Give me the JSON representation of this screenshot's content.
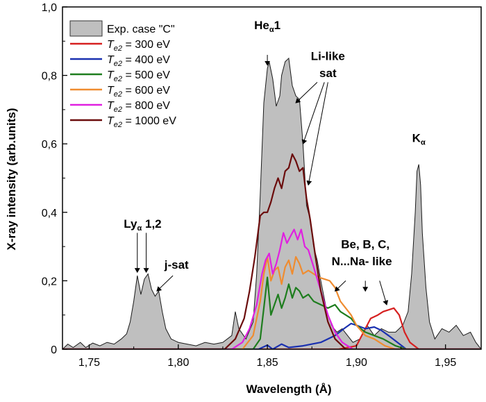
{
  "chart_data": {
    "type": "area",
    "xlabel": "Wavelength (Å)",
    "ylabel": "X-ray intensity (arb.units)",
    "xlim": [
      1.735,
      1.97
    ],
    "ylim": [
      0,
      1.0
    ],
    "x_ticks": [
      1.75,
      1.8,
      1.85,
      1.9,
      1.95
    ],
    "x_tick_labels": [
      "1,75",
      "1,80",
      "1,85",
      "1,90",
      "1,95"
    ],
    "y_ticks": [
      0,
      0.2,
      0.4,
      0.6,
      0.8,
      1.0
    ],
    "y_tick_labels": [
      "0",
      "0,2",
      "0,4",
      "0,6",
      "0,8",
      "1,0"
    ],
    "grid": false,
    "legend_position": "top-left",
    "series": [
      {
        "name": "Exp. case \"C\"",
        "kind": "filled",
        "color": "#bfbfbf",
        "points": [
          [
            1.735,
            0.0
          ],
          [
            1.738,
            0.015
          ],
          [
            1.741,
            0.005
          ],
          [
            1.745,
            0.02
          ],
          [
            1.748,
            0.005
          ],
          [
            1.752,
            0.018
          ],
          [
            1.756,
            0.01
          ],
          [
            1.76,
            0.02
          ],
          [
            1.764,
            0.015
          ],
          [
            1.768,
            0.03
          ],
          [
            1.771,
            0.045
          ],
          [
            1.773,
            0.08
          ],
          [
            1.775,
            0.14
          ],
          [
            1.777,
            0.215
          ],
          [
            1.779,
            0.16
          ],
          [
            1.781,
            0.205
          ],
          [
            1.783,
            0.22
          ],
          [
            1.785,
            0.175
          ],
          [
            1.787,
            0.155
          ],
          [
            1.789,
            0.17
          ],
          [
            1.791,
            0.11
          ],
          [
            1.793,
            0.06
          ],
          [
            1.796,
            0.03
          ],
          [
            1.8,
            0.02
          ],
          [
            1.805,
            0.015
          ],
          [
            1.81,
            0.01
          ],
          [
            1.815,
            0.02
          ],
          [
            1.82,
            0.015
          ],
          [
            1.825,
            0.02
          ],
          [
            1.83,
            0.04
          ],
          [
            1.832,
            0.11
          ],
          [
            1.834,
            0.06
          ],
          [
            1.838,
            0.03
          ],
          [
            1.842,
            0.08
          ],
          [
            1.844,
            0.22
          ],
          [
            1.846,
            0.45
          ],
          [
            1.848,
            0.72
          ],
          [
            1.85,
            0.82
          ],
          [
            1.851,
            0.84
          ],
          [
            1.853,
            0.79
          ],
          [
            1.855,
            0.71
          ],
          [
            1.857,
            0.74
          ],
          [
            1.858,
            0.8
          ],
          [
            1.86,
            0.84
          ],
          [
            1.862,
            0.85
          ],
          [
            1.864,
            0.77
          ],
          [
            1.866,
            0.74
          ],
          [
            1.868,
            0.73
          ],
          [
            1.87,
            0.6
          ],
          [
            1.872,
            0.42
          ],
          [
            1.874,
            0.38
          ],
          [
            1.876,
            0.3
          ],
          [
            1.878,
            0.26
          ],
          [
            1.88,
            0.2
          ],
          [
            1.883,
            0.12
          ],
          [
            1.886,
            0.07
          ],
          [
            1.889,
            0.05
          ],
          [
            1.892,
            0.06
          ],
          [
            1.895,
            0.04
          ],
          [
            1.898,
            0.02
          ],
          [
            1.902,
            0.03
          ],
          [
            1.906,
            0.07
          ],
          [
            1.91,
            0.04
          ],
          [
            1.914,
            0.06
          ],
          [
            1.918,
            0.05
          ],
          [
            1.922,
            0.05
          ],
          [
            1.926,
            0.07
          ],
          [
            1.929,
            0.11
          ],
          [
            1.931,
            0.22
          ],
          [
            1.933,
            0.4
          ],
          [
            1.934,
            0.52
          ],
          [
            1.935,
            0.54
          ],
          [
            1.936,
            0.48
          ],
          [
            1.937,
            0.34
          ],
          [
            1.939,
            0.18
          ],
          [
            1.941,
            0.08
          ],
          [
            1.944,
            0.03
          ],
          [
            1.948,
            0.06
          ],
          [
            1.952,
            0.05
          ],
          [
            1.956,
            0.07
          ],
          [
            1.96,
            0.04
          ],
          [
            1.964,
            0.05
          ],
          [
            1.967,
            0.02
          ],
          [
            1.97,
            0.0
          ]
        ]
      },
      {
        "name": "Te2 = 300 eV",
        "label_main": "T",
        "label_sub": "e2",
        "label_rest": " = 300 eV",
        "color": "#d62020",
        "points": [
          [
            1.735,
            0
          ],
          [
            1.89,
            0.0
          ],
          [
            1.9,
            0.01
          ],
          [
            1.905,
            0.06
          ],
          [
            1.908,
            0.09
          ],
          [
            1.912,
            0.1
          ],
          [
            1.915,
            0.11
          ],
          [
            1.918,
            0.115
          ],
          [
            1.921,
            0.12
          ],
          [
            1.924,
            0.1
          ],
          [
            1.927,
            0.05
          ],
          [
            1.93,
            0.02
          ],
          [
            1.935,
            0.0
          ],
          [
            1.97,
            0
          ]
        ]
      },
      {
        "name": "Te2 = 400 eV",
        "label_main": "T",
        "label_sub": "e2",
        "label_rest": " = 400 eV",
        "color": "#1a30b0",
        "points": [
          [
            1.735,
            0
          ],
          [
            1.845,
            0.0
          ],
          [
            1.85,
            0.012
          ],
          [
            1.853,
            0.0
          ],
          [
            1.858,
            0.015
          ],
          [
            1.862,
            0.005
          ],
          [
            1.87,
            0.01
          ],
          [
            1.88,
            0.02
          ],
          [
            1.888,
            0.04
          ],
          [
            1.893,
            0.06
          ],
          [
            1.897,
            0.075
          ],
          [
            1.9,
            0.07
          ],
          [
            1.905,
            0.06
          ],
          [
            1.91,
            0.065
          ],
          [
            1.914,
            0.055
          ],
          [
            1.918,
            0.04
          ],
          [
            1.923,
            0.02
          ],
          [
            1.928,
            0.0
          ],
          [
            1.97,
            0
          ]
        ]
      },
      {
        "name": "Te2 = 500 eV",
        "label_main": "T",
        "label_sub": "e2",
        "label_rest": " = 500 eV",
        "color": "#1e7d1e",
        "points": [
          [
            1.735,
            0
          ],
          [
            1.842,
            0.0
          ],
          [
            1.846,
            0.03
          ],
          [
            1.848,
            0.12
          ],
          [
            1.85,
            0.21
          ],
          [
            1.852,
            0.1
          ],
          [
            1.854,
            0.13
          ],
          [
            1.856,
            0.16
          ],
          [
            1.858,
            0.12
          ],
          [
            1.86,
            0.15
          ],
          [
            1.862,
            0.19
          ],
          [
            1.864,
            0.15
          ],
          [
            1.866,
            0.18
          ],
          [
            1.868,
            0.17
          ],
          [
            1.87,
            0.15
          ],
          [
            1.873,
            0.16
          ],
          [
            1.876,
            0.14
          ],
          [
            1.88,
            0.13
          ],
          [
            1.884,
            0.12
          ],
          [
            1.888,
            0.13
          ],
          [
            1.891,
            0.11
          ],
          [
            1.894,
            0.1
          ],
          [
            1.897,
            0.09
          ],
          [
            1.9,
            0.07
          ],
          [
            1.905,
            0.05
          ],
          [
            1.91,
            0.04
          ],
          [
            1.915,
            0.03
          ],
          [
            1.922,
            0.01
          ],
          [
            1.928,
            0.0
          ],
          [
            1.97,
            0
          ]
        ]
      },
      {
        "name": "Te2 = 600 eV",
        "label_main": "T",
        "label_sub": "e2",
        "label_rest": " = 600 eV",
        "color": "#ef8c30",
        "points": [
          [
            1.735,
            0
          ],
          [
            1.836,
            0.0
          ],
          [
            1.842,
            0.04
          ],
          [
            1.846,
            0.14
          ],
          [
            1.848,
            0.22
          ],
          [
            1.85,
            0.27
          ],
          [
            1.852,
            0.2
          ],
          [
            1.854,
            0.23
          ],
          [
            1.856,
            0.24
          ],
          [
            1.858,
            0.19
          ],
          [
            1.86,
            0.24
          ],
          [
            1.862,
            0.26
          ],
          [
            1.864,
            0.22
          ],
          [
            1.866,
            0.27
          ],
          [
            1.868,
            0.25
          ],
          [
            1.87,
            0.22
          ],
          [
            1.873,
            0.23
          ],
          [
            1.876,
            0.22
          ],
          [
            1.879,
            0.21
          ],
          [
            1.882,
            0.205
          ],
          [
            1.885,
            0.2
          ],
          [
            1.888,
            0.18
          ],
          [
            1.891,
            0.14
          ],
          [
            1.894,
            0.12
          ],
          [
            1.897,
            0.1
          ],
          [
            1.9,
            0.07
          ],
          [
            1.905,
            0.04
          ],
          [
            1.91,
            0.03
          ],
          [
            1.916,
            0.01
          ],
          [
            1.922,
            0.0
          ],
          [
            1.97,
            0
          ]
        ]
      },
      {
        "name": "Te2 = 800 eV",
        "label_main": "T",
        "label_sub": "e2",
        "label_rest": " = 800 eV",
        "color": "#e020e0",
        "points": [
          [
            1.735,
            0
          ],
          [
            1.83,
            0.0
          ],
          [
            1.836,
            0.02
          ],
          [
            1.84,
            0.06
          ],
          [
            1.844,
            0.13
          ],
          [
            1.847,
            0.22
          ],
          [
            1.849,
            0.26
          ],
          [
            1.851,
            0.28
          ],
          [
            1.853,
            0.22
          ],
          [
            1.855,
            0.25
          ],
          [
            1.857,
            0.29
          ],
          [
            1.859,
            0.34
          ],
          [
            1.861,
            0.31
          ],
          [
            1.863,
            0.33
          ],
          [
            1.865,
            0.35
          ],
          [
            1.867,
            0.32
          ],
          [
            1.869,
            0.35
          ],
          [
            1.871,
            0.3
          ],
          [
            1.873,
            0.29
          ],
          [
            1.876,
            0.24
          ],
          [
            1.88,
            0.17
          ],
          [
            1.884,
            0.1
          ],
          [
            1.888,
            0.05
          ],
          [
            1.892,
            0.02
          ],
          [
            1.898,
            0.0
          ],
          [
            1.97,
            0
          ]
        ]
      },
      {
        "name": "Te2 = 1000 eV",
        "label_main": "T",
        "label_sub": "e2",
        "label_rest": " = 1000 eV",
        "color": "#6b0c0c",
        "points": [
          [
            1.735,
            0
          ],
          [
            1.826,
            0.0
          ],
          [
            1.832,
            0.03
          ],
          [
            1.837,
            0.09
          ],
          [
            1.84,
            0.17
          ],
          [
            1.843,
            0.27
          ],
          [
            1.846,
            0.39
          ],
          [
            1.848,
            0.4
          ],
          [
            1.85,
            0.4
          ],
          [
            1.852,
            0.43
          ],
          [
            1.854,
            0.47
          ],
          [
            1.856,
            0.5
          ],
          [
            1.858,
            0.47
          ],
          [
            1.86,
            0.52
          ],
          [
            1.862,
            0.53
          ],
          [
            1.864,
            0.57
          ],
          [
            1.866,
            0.55
          ],
          [
            1.868,
            0.52
          ],
          [
            1.87,
            0.53
          ],
          [
            1.872,
            0.44
          ],
          [
            1.874,
            0.38
          ],
          [
            1.877,
            0.27
          ],
          [
            1.88,
            0.17
          ],
          [
            1.884,
            0.08
          ],
          [
            1.888,
            0.03
          ],
          [
            1.894,
            0.0
          ],
          [
            1.97,
            0
          ]
        ]
      }
    ],
    "annotations": [
      {
        "text": "Heα1",
        "main": "He",
        "sub": "α",
        "tail": "1",
        "x": 1.85,
        "y": 0.935
      },
      {
        "text": "Li-like",
        "main": "Li-like",
        "x": 1.884,
        "y": 0.845
      },
      {
        "text": "sat",
        "main": "sat",
        "x": 1.884,
        "y": 0.795
      },
      {
        "text": "Kα",
        "main": "K",
        "sub": "α",
        "x": 1.935,
        "y": 0.605
      },
      {
        "text": "Lyα 1,2",
        "main": "Ly",
        "sub": "α",
        "tail": " 1,2",
        "x": 1.78,
        "y": 0.355
      },
      {
        "text": "j-sat",
        "main": "j-sat",
        "x": 1.799,
        "y": 0.235
      },
      {
        "text": "Be, B, C,",
        "main": "Be, B, C,",
        "x": 1.905,
        "y": 0.295
      },
      {
        "text": "N...Na- like",
        "main": "N...Na- like",
        "x": 1.903,
        "y": 0.245
      }
    ],
    "arrows": [
      {
        "from": [
          1.85,
          0.86
        ],
        "to": [
          1.85,
          0.83
        ]
      },
      {
        "from": [
          1.878,
          0.78
        ],
        "to": [
          1.866,
          0.72
        ]
      },
      {
        "from": [
          1.882,
          0.78
        ],
        "to": [
          1.87,
          0.6
        ]
      },
      {
        "from": [
          1.884,
          0.78
        ],
        "to": [
          1.873,
          0.48
        ]
      },
      {
        "from": [
          1.777,
          0.34
        ],
        "to": [
          1.777,
          0.225
        ]
      },
      {
        "from": [
          1.782,
          0.34
        ],
        "to": [
          1.782,
          0.225
        ]
      },
      {
        "from": [
          1.797,
          0.215
        ],
        "to": [
          1.788,
          0.17
        ]
      },
      {
        "from": [
          1.894,
          0.2
        ],
        "to": [
          1.888,
          0.17
        ]
      },
      {
        "from": [
          1.905,
          0.2
        ],
        "to": [
          1.905,
          0.17
        ]
      },
      {
        "from": [
          1.913,
          0.2
        ],
        "to": [
          1.917,
          0.13
        ]
      }
    ]
  }
}
